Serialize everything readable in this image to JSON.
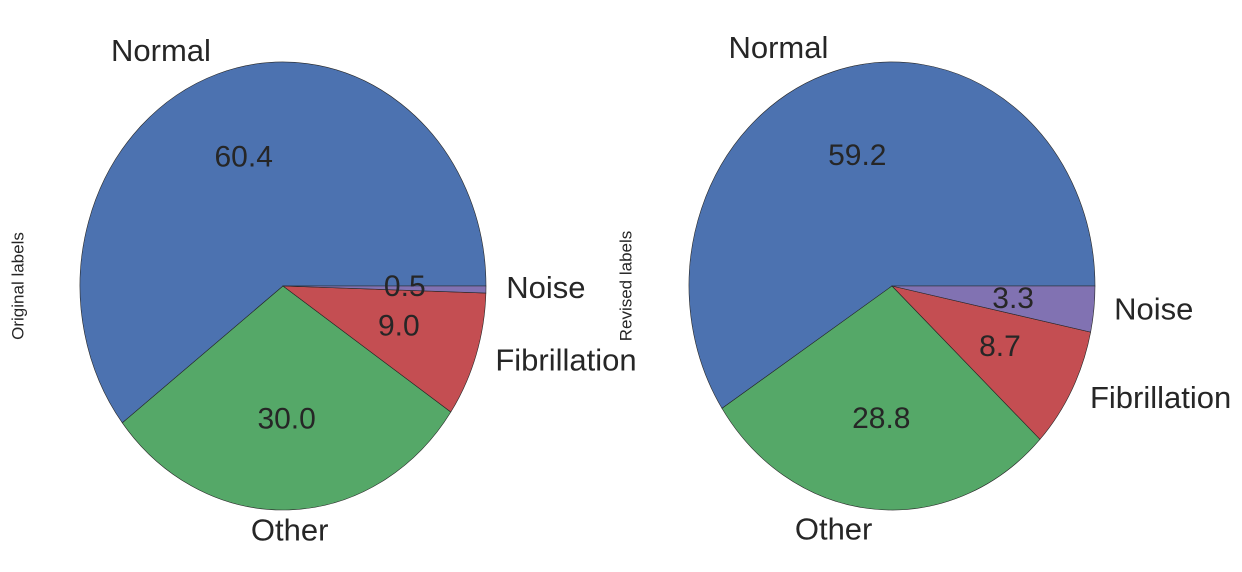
{
  "chart_data": [
    {
      "type": "pie",
      "ylabel": "Original labels",
      "labels": [
        "Normal",
        "Other",
        "Fibrillation",
        "Noise"
      ],
      "values": [
        60.4,
        30.0,
        9.0,
        0.5
      ],
      "pct_labels": [
        "60.4",
        "30.0",
        "9.0",
        "0.5"
      ],
      "colors": [
        "#4c72b0",
        "#55a868",
        "#c44e52",
        "#8172b2"
      ],
      "start_angle_deg": 0,
      "direction": "counterclockwise"
    },
    {
      "type": "pie",
      "ylabel": "Revised labels",
      "labels": [
        "Normal",
        "Other",
        "Fibrillation",
        "Noise"
      ],
      "values": [
        59.2,
        28.8,
        8.7,
        3.3
      ],
      "pct_labels": [
        "59.2",
        "28.8",
        "8.7",
        "3.3"
      ],
      "colors": [
        "#4c72b0",
        "#55a868",
        "#c44e52",
        "#8172b2"
      ],
      "start_angle_deg": 0,
      "direction": "counterclockwise"
    }
  ]
}
